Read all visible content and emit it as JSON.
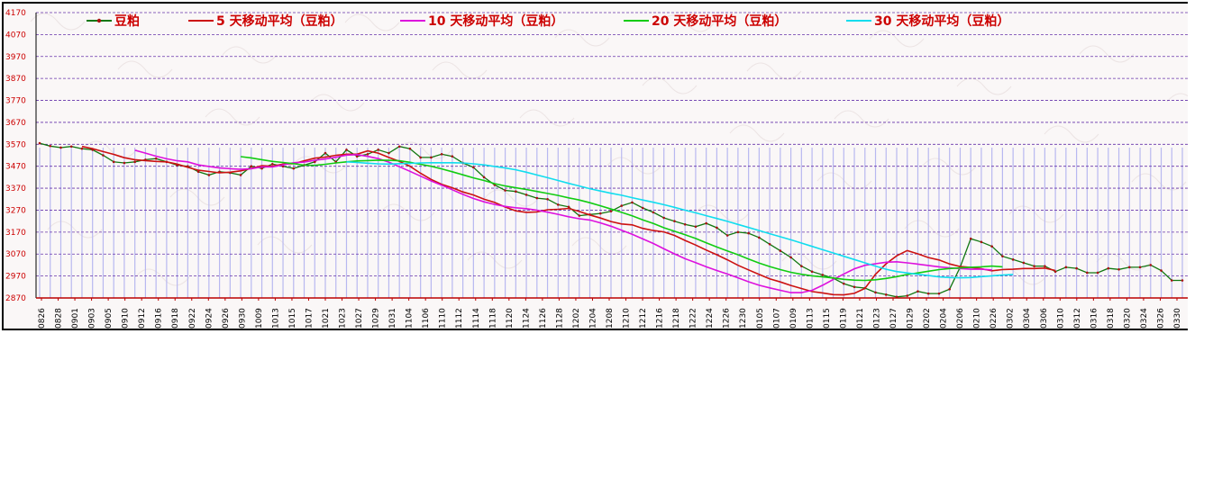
{
  "chart_data": {
    "type": "line",
    "title": "",
    "xlabel": "",
    "ylabel": "",
    "ylim": [
      2870,
      4170
    ],
    "yticks": [
      2870,
      2970,
      3070,
      3170,
      3270,
      3370,
      3470,
      3570,
      3670,
      3770,
      3870,
      3970,
      4070,
      4170
    ],
    "xtick_labels": [
      "0826",
      "0828",
      "0901",
      "0903",
      "0905",
      "0910",
      "0912",
      "0916",
      "0918",
      "0922",
      "0924",
      "0926",
      "0930",
      "1009",
      "1013",
      "1015",
      "1017",
      "1021",
      "1023",
      "1027",
      "1029",
      "1031",
      "1104",
      "1106",
      "1110",
      "1112",
      "1114",
      "1118",
      "1120",
      "1124",
      "1126",
      "1128",
      "1202",
      "1204",
      "1208",
      "1210",
      "1212",
      "1216",
      "1218",
      "1222",
      "1224",
      "1226",
      "1230",
      "0105",
      "0107",
      "0109",
      "0113",
      "0115",
      "0119",
      "0121",
      "0123",
      "0127",
      "0129",
      "0202",
      "0204",
      "0206",
      "0210",
      "0226",
      "0302",
      "0304",
      "0306",
      "0310",
      "0312",
      "0316",
      "0318",
      "0320",
      "0324",
      "0326",
      "0330"
    ],
    "series": [
      {
        "name": "豆粕",
        "color": "#117711",
        "marker": "dot",
        "values": [
          3575,
          3562,
          3555,
          3560,
          3550,
          3545,
          3520,
          3490,
          3485,
          3490,
          3500,
          3505,
          3490,
          3475,
          3470,
          3445,
          3430,
          3445,
          3440,
          3430,
          3470,
          3460,
          3480,
          3470,
          3460,
          3475,
          3490,
          3530,
          3490,
          3545,
          3515,
          3525,
          3545,
          3530,
          3560,
          3550,
          3510,
          3510,
          3525,
          3515,
          3485,
          3465,
          3420,
          3385,
          3360,
          3355,
          3340,
          3325,
          3320,
          3295,
          3285,
          3245,
          3250,
          3255,
          3265,
          3290,
          3305,
          3280,
          3260,
          3235,
          3220,
          3205,
          3195,
          3210,
          3190,
          3155,
          3170,
          3165,
          3145,
          3115,
          3085,
          3055,
          3015,
          2990,
          2975,
          2960,
          2935,
          2920,
          2915,
          2895,
          2885,
          2875,
          2880,
          2900,
          2890,
          2890,
          2910,
          3010,
          3140,
          3125,
          3105,
          3060,
          3045,
          3030,
          3015,
          3015,
          2990,
          3010,
          3005,
          2985,
          2985,
          3005,
          3000,
          3010,
          3010,
          3020,
          2995,
          2950,
          2950
        ]
      },
      {
        "name": "5 天移动平均（豆粕）",
        "color": "#cc1111",
        "start": 4,
        "values": [
          3560,
          3550,
          3537,
          3524,
          3509,
          3500,
          3496,
          3492,
          3490,
          3480,
          3465,
          3452,
          3446,
          3440,
          3443,
          3449,
          3460,
          3473,
          3470,
          3480,
          3482,
          3495,
          3507,
          3512,
          3520,
          3525,
          3525,
          3540,
          3530,
          3510,
          3492,
          3470,
          3438,
          3410,
          3388,
          3372,
          3353,
          3339,
          3320,
          3305,
          3284,
          3267,
          3260,
          3262,
          3272,
          3274,
          3278,
          3264,
          3248,
          3234,
          3218,
          3207,
          3203,
          3187,
          3177,
          3171,
          3155,
          3132,
          3111,
          3088,
          3067,
          3044,
          3019,
          2998,
          2977,
          2957,
          2943,
          2927,
          2913,
          2899,
          2893,
          2885,
          2884,
          2891,
          2914,
          2978,
          3026,
          3062,
          3086,
          3071,
          3054,
          3043,
          3025,
          3013,
          3009,
          3003,
          2994,
          2999,
          3001,
          3004,
          3004,
          3006,
          2995
        ]
      },
      {
        "name": "10 天移动平均（豆粕）",
        "color": "#dd11dd",
        "start": 9,
        "values": [
          3543,
          3530,
          3516,
          3504,
          3495,
          3490,
          3476,
          3469,
          3462,
          3459,
          3456,
          3459,
          3467,
          3467,
          3476,
          3486,
          3489,
          3497,
          3503,
          3511,
          3521,
          3523,
          3515,
          3505,
          3489,
          3468,
          3447,
          3425,
          3403,
          3384,
          3363,
          3342,
          3323,
          3308,
          3296,
          3287,
          3281,
          3277,
          3270,
          3261,
          3251,
          3240,
          3231,
          3225,
          3212,
          3197,
          3179,
          3160,
          3139,
          3118,
          3094,
          3071,
          3049,
          3031,
          3012,
          2995,
          2979,
          2962,
          2944,
          2928,
          2916,
          2905,
          2894,
          2894,
          2905,
          2928,
          2954,
          2979,
          3003,
          3019,
          3026,
          3033,
          3035,
          3030,
          3024,
          3018,
          3012,
          3007,
          3004,
          3001,
          3001,
          2998
        ]
      },
      {
        "name": "20 天移动平均（豆粕）",
        "color": "#11cc11",
        "start": 19,
        "values": [
          3514,
          3508,
          3500,
          3492,
          3487,
          3482,
          3475,
          3474,
          3479,
          3485,
          3490,
          3494,
          3496,
          3498,
          3497,
          3495,
          3488,
          3479,
          3470,
          3458,
          3445,
          3431,
          3417,
          3405,
          3391,
          3380,
          3372,
          3364,
          3355,
          3346,
          3337,
          3326,
          3316,
          3304,
          3290,
          3275,
          3260,
          3244,
          3226,
          3209,
          3190,
          3174,
          3158,
          3141,
          3121,
          3102,
          3084,
          3067,
          3047,
          3029,
          3013,
          2999,
          2987,
          2978,
          2971,
          2966,
          2961,
          2955,
          2951,
          2950,
          2953,
          2959,
          2967,
          2977,
          2984,
          2992,
          2999,
          3004,
          3007,
          3010,
          3012,
          3015,
          3012
        ]
      },
      {
        "name": "30 天移动平均（豆粕）",
        "color": "#11ddee",
        "start": 29,
        "values": [
          3490,
          3487,
          3484,
          3481,
          3480,
          3482,
          3483,
          3485,
          3486,
          3486,
          3486,
          3485,
          3481,
          3476,
          3469,
          3462,
          3454,
          3443,
          3430,
          3418,
          3405,
          3392,
          3380,
          3368,
          3357,
          3347,
          3338,
          3327,
          3316,
          3306,
          3295,
          3283,
          3270,
          3258,
          3245,
          3232,
          3219,
          3205,
          3191,
          3177,
          3163,
          3149,
          3135,
          3120,
          3105,
          3090,
          3075,
          3060,
          3045,
          3030,
          3015,
          3001,
          2990,
          2984,
          2978,
          2972,
          2966,
          2963,
          2962,
          2963,
          2967,
          2971,
          2974,
          2977
        ]
      }
    ],
    "legend": "top",
    "grid": true
  },
  "legend_items": [
    {
      "label": "豆粕",
      "color": "#117711",
      "marker": true
    },
    {
      "label": "5 天移动平均（豆粕）",
      "color": "#cc1111",
      "marker": false
    },
    {
      "label": "10 天移动平均（豆粕）",
      "color": "#dd11dd",
      "marker": false
    },
    {
      "label": "20 天移动平均（豆粕）",
      "color": "#11cc11",
      "marker": false
    },
    {
      "label": "30 天移动平均（豆粕）",
      "color": "#11ddee",
      "marker": false
    }
  ],
  "colors": {
    "axis_text": "#cc0000",
    "grid_line": "#6633aa",
    "volume_bar": "#b8b8f0",
    "background": "#faf7f7"
  }
}
